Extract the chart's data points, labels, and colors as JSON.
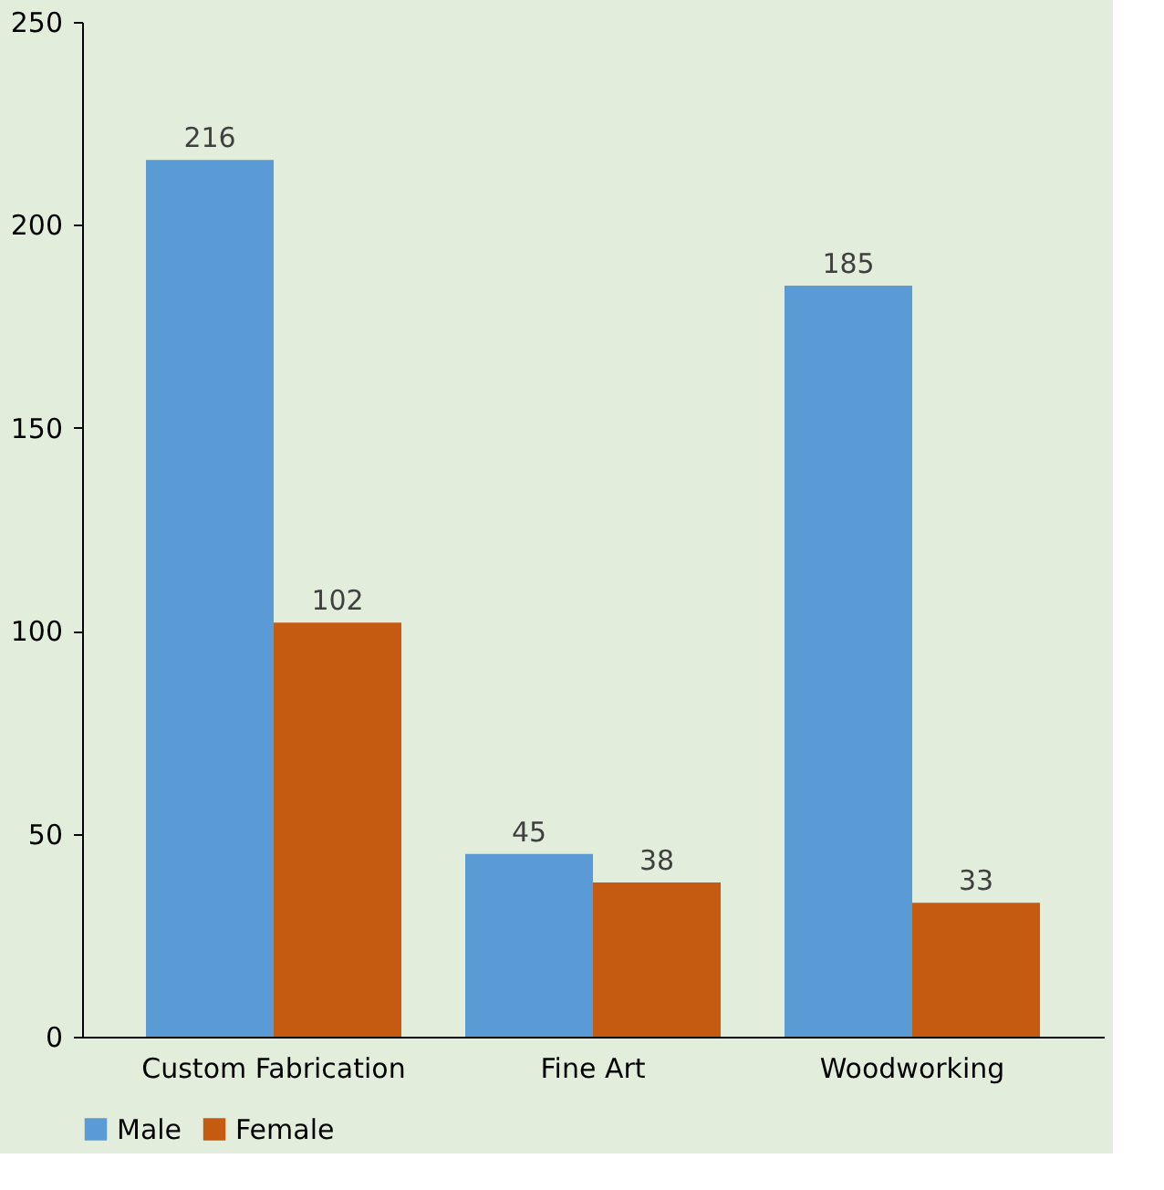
{
  "chart_data": {
    "type": "bar",
    "categories": [
      "Custom Fabrication",
      "Fine Art",
      "Woodworking"
    ],
    "series": [
      {
        "name": "Male",
        "color": "#5b9bd5",
        "values": [
          216,
          45,
          185
        ]
      },
      {
        "name": "Female",
        "color": "#c55a11",
        "values": [
          102,
          38,
          33
        ]
      }
    ],
    "ylim": [
      0,
      250
    ],
    "yticks": [
      0,
      50,
      100,
      150,
      200,
      250
    ],
    "grid": false,
    "legend": "bottom",
    "data_labels": true
  }
}
